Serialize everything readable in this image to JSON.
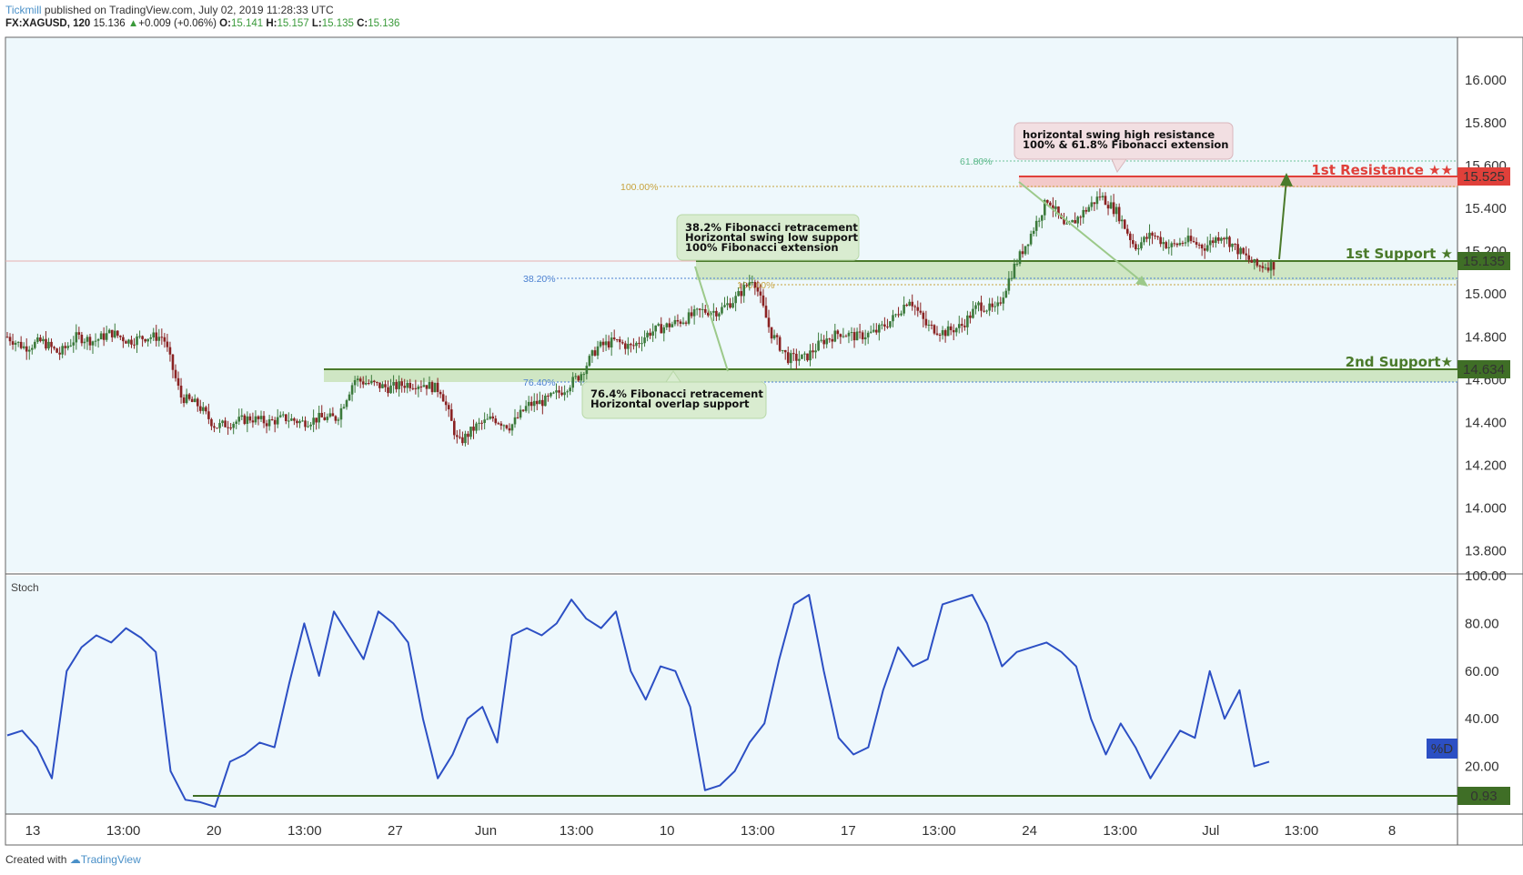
{
  "header": {
    "brand": "Tickmill",
    "published": "published on TradingView.com, July 02, 2019 11:28:33 UTC"
  },
  "symbol_line": {
    "symbol": "FX:XAGUSD, 120",
    "last": "15.136",
    "change": "+0.009 (+0.06%)",
    "open_label": "O:",
    "open": "15.141",
    "high_label": "H:",
    "high": "15.157",
    "low_label": "L:",
    "low": "15.135",
    "close_label": "C:",
    "close": "15.136"
  },
  "footer": {
    "created_with": "Created with",
    "tradingview": "TradingView"
  },
  "colors": {
    "up": "#3b7a3b",
    "down": "#8a2222",
    "stoch": "#2c4fc4",
    "support": "#4a7a2a",
    "resistance": "#e0403a",
    "panel_bg": "#eef8fc"
  },
  "annotations": {
    "resistance_note": [
      "horizontal swing high resistance",
      "100% & 61.8% Fibonacci extension"
    ],
    "support1_note": [
      "38.2% Fibonacci retracement",
      "Horizontal swing low support",
      "100% Fibonacci extension"
    ],
    "support2_note": [
      "76.4% Fibonacci retracement",
      "Horizontal overlap support"
    ],
    "res1_label": "1st Resistance ★★",
    "sup1_label": "1st Support ★",
    "sup2_label": "2nd Support★",
    "fib_618": "61.80%",
    "fib_100_top": "100.00%",
    "fib_382": "38.20%",
    "fib_100_mid": "100.00%",
    "fib_764": "76.40%"
  },
  "price_tags": {
    "resistance": "15.525",
    "support1": "15.135",
    "support2": "14.634",
    "stoch": "0.93",
    "stoch_legend": "%D"
  },
  "stoch_title": "Stoch",
  "chart_data": [
    {
      "type": "candlestick",
      "title": "FX:XAGUSD, 120",
      "y_ticks": [
        "16.000",
        "15.800",
        "15.600",
        "15.400",
        "15.200",
        "15.000",
        "14.800",
        "14.600",
        "14.400",
        "14.200",
        "14.000",
        "13.800"
      ],
      "ylim": [
        13.7,
        16.2
      ],
      "x_ticks": [
        "13",
        "13:00",
        "20",
        "13:00",
        "27",
        "Jun",
        "13:00",
        "10",
        "13:00",
        "17",
        "13:00",
        "24",
        "13:00",
        "Jul",
        "13:00",
        "8"
      ],
      "levels": {
        "resistance": 15.525,
        "support1": 15.135,
        "support2": 14.634
      },
      "price_path": [
        14.8,
        14.75,
        14.78,
        14.72,
        14.8,
        14.78,
        14.82,
        14.78,
        14.8,
        14.8,
        14.52,
        14.48,
        14.38,
        14.4,
        14.42,
        14.4,
        14.42,
        14.4,
        14.42,
        14.42,
        14.6,
        14.58,
        14.56,
        14.58,
        14.58,
        14.55,
        14.3,
        14.38,
        14.42,
        14.38,
        14.48,
        14.5,
        14.55,
        14.62,
        14.75,
        14.78,
        14.75,
        14.82,
        14.85,
        14.88,
        14.92,
        14.92,
        14.98,
        15.08,
        14.82,
        14.7,
        14.7,
        14.78,
        14.82,
        14.8,
        14.82,
        14.88,
        14.98,
        14.85,
        14.82,
        14.85,
        14.95,
        14.92,
        15.12,
        15.28,
        15.45,
        15.3,
        15.38,
        15.46,
        15.38,
        15.22,
        15.28,
        15.22,
        15.25,
        15.22,
        15.28,
        15.2,
        15.13,
        15.136
      ],
      "x": [
        "13",
        "13:00",
        "20",
        "13:00",
        "27",
        "Jun",
        "13:00",
        "10",
        "13:00",
        "17",
        "13:00",
        "24",
        "13:00",
        "Jul"
      ]
    },
    {
      "type": "line",
      "title": "Stoch",
      "y_ticks": [
        "100.00",
        "80.00",
        "60.00",
        "40.00",
        "20.00"
      ],
      "ylim": [
        0,
        100
      ],
      "series": [
        {
          "name": "%D",
          "values": [
            33,
            35,
            28,
            15,
            60,
            70,
            75,
            72,
            78,
            74,
            68,
            18,
            6,
            5,
            3,
            22,
            25,
            30,
            28,
            55,
            80,
            58,
            85,
            75,
            65,
            85,
            80,
            72,
            40,
            15,
            25,
            40,
            45,
            30,
            75,
            78,
            75,
            80,
            90,
            82,
            78,
            85,
            60,
            48,
            62,
            60,
            45,
            10,
            12,
            18,
            30,
            38,
            65,
            88,
            92,
            60,
            32,
            25,
            28,
            52,
            70,
            62,
            65,
            88,
            90,
            92,
            80,
            62,
            68,
            70,
            72,
            68,
            62,
            40,
            25,
            38,
            28,
            15,
            25,
            35,
            32,
            60,
            40,
            52,
            20,
            22
          ]
        }
      ]
    }
  ]
}
